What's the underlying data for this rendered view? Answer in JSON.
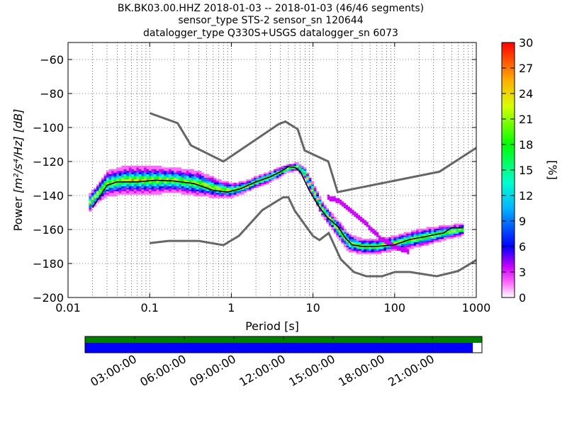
{
  "chart_data": {
    "type": "heatmap",
    "title_lines": [
      "BK.BK03.00.HHZ   2018-01-03 -- 2018-01-03  (46/46 segments)",
      "sensor_type STS-2 sensor_sn 120644",
      "datalogger_type Q330S+USGS datalogger_sn 6073"
    ],
    "xlabel": "Period [s]",
    "ylabel_prefix": "Power ",
    "ylabel_unit": "[m²/s⁴/Hz] [dB]",
    "x_scale": "log",
    "xlim": [
      0.01,
      1000
    ],
    "ylim": [
      -200,
      -50
    ],
    "x_ticks": [
      0.01,
      0.1,
      1,
      10,
      100,
      1000
    ],
    "x_tick_labels": [
      "0.01",
      "0.1",
      "1",
      "10",
      "100",
      "1000"
    ],
    "y_ticks": [
      -60,
      -80,
      -100,
      -120,
      -140,
      -160,
      -180,
      -200
    ],
    "y_tick_labels": [
      "−60",
      "−80",
      "−100",
      "−120",
      "−140",
      "−160",
      "−180",
      "−200"
    ],
    "grid": "dotted",
    "colorbar": {
      "label": "[%]",
      "range": [
        0,
        30
      ],
      "ticks": [
        0,
        3,
        6,
        9,
        12,
        15,
        18,
        21,
        24,
        27,
        30
      ],
      "tick_labels": [
        "0",
        "3",
        "6",
        "9",
        "12",
        "15",
        "18",
        "21",
        "24",
        "27",
        "30"
      ]
    },
    "noise_models": {
      "high": [
        [
          0.1,
          -91.5
        ],
        [
          0.22,
          -97.4
        ],
        [
          0.32,
          -110.5
        ],
        [
          0.8,
          -120
        ],
        [
          3.8,
          -98
        ],
        [
          4.6,
          -96.5
        ],
        [
          6.5,
          -101
        ],
        [
          7.9,
          -113.5
        ],
        [
          15.4,
          -120
        ],
        [
          20,
          -138
        ],
        [
          354,
          -126
        ],
        [
          1000,
          -112
        ]
      ],
      "low": [
        [
          0.1,
          -168
        ],
        [
          0.17,
          -166.7
        ],
        [
          0.4,
          -166.7
        ],
        [
          0.8,
          -169.2
        ],
        [
          1.24,
          -163.7
        ],
        [
          2.4,
          -148.6
        ],
        [
          4.3,
          -141.1
        ],
        [
          5,
          -141.1
        ],
        [
          6,
          -149
        ],
        [
          10,
          -163.8
        ],
        [
          12,
          -166.2
        ],
        [
          15.6,
          -162.1
        ],
        [
          21.9,
          -177.5
        ],
        [
          31.6,
          -185
        ],
        [
          45,
          -187.5
        ],
        [
          70,
          -187.5
        ],
        [
          101,
          -185
        ],
        [
          154,
          -185
        ],
        [
          328,
          -187.5
        ],
        [
          600,
          -184.4
        ],
        [
          1000,
          -178
        ]
      ]
    },
    "median": [
      [
        0.02,
        -147
      ],
      [
        0.025,
        -140
      ],
      [
        0.03,
        -134
      ],
      [
        0.04,
        -132
      ],
      [
        0.07,
        -132
      ],
      [
        0.12,
        -131
      ],
      [
        0.2,
        -131.5
      ],
      [
        0.35,
        -133
      ],
      [
        0.6,
        -137
      ],
      [
        0.9,
        -138
      ],
      [
        1.3,
        -136
      ],
      [
        2,
        -132
      ],
      [
        3,
        -129
      ],
      [
        4,
        -126
      ],
      [
        5,
        -123
      ],
      [
        6,
        -123.5
      ],
      [
        7,
        -126
      ],
      [
        9,
        -137
      ],
      [
        12,
        -147
      ],
      [
        15,
        -153
      ],
      [
        20,
        -158
      ],
      [
        25,
        -165
      ],
      [
        30,
        -169
      ],
      [
        40,
        -170
      ],
      [
        60,
        -170
      ],
      [
        100,
        -169
      ],
      [
        150,
        -166
      ],
      [
        250,
        -164
      ],
      [
        400,
        -162
      ],
      [
        500,
        -159
      ],
      [
        700,
        -159
      ]
    ],
    "density_bands": [
      {
        "x": [
          0.018,
          0.022,
          0.03,
          0.05,
          0.1,
          0.2,
          0.4,
          0.7,
          1.0,
          1.5,
          2,
          3,
          5,
          6.5,
          8,
          10,
          13,
          17,
          22,
          28,
          40,
          60,
          100,
          200,
          400,
          700
        ],
        "y": [
          -145,
          -140,
          -133,
          -131,
          -131,
          -131,
          -133,
          -136,
          -137,
          -135,
          -132,
          -129,
          -124,
          -123,
          -127,
          -137,
          -148,
          -155,
          -162,
          -168,
          -170,
          -170,
          -168,
          -165,
          -162,
          -160
        ],
        "half_width": [
          5,
          5,
          7,
          8,
          8,
          7,
          7,
          5,
          4,
          3,
          3,
          3,
          2,
          2,
          3,
          4,
          4,
          4,
          5,
          5,
          4,
          4,
          4,
          5,
          4,
          3
        ]
      },
      {
        "x": [
          15,
          20,
          30,
          45,
          70,
          100,
          150
        ],
        "y": [
          -141,
          -143,
          -150,
          -157,
          -166,
          -170,
          -173
        ],
        "half_width": [
          1,
          1,
          1,
          1,
          1,
          1,
          1
        ]
      }
    ]
  },
  "timeline": {
    "tick_labels": [
      "03:00:00",
      "06:00:00",
      "09:00:00",
      "12:00:00",
      "15:00:00",
      "18:00:00",
      "21:00:00"
    ],
    "coverage_fraction": 0.977,
    "colors": {
      "top_band": "#007f00",
      "bottom_band": "#0000ff"
    }
  }
}
